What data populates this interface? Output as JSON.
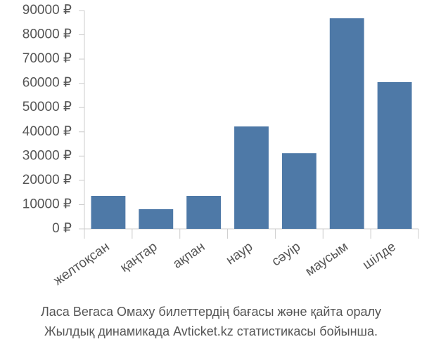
{
  "chart_data": {
    "type": "bar",
    "categories": [
      "желтоқсан",
      "қаңтар",
      "ақпан",
      "наур",
      "сәуір",
      "маусым",
      "шілде"
    ],
    "values": [
      13600,
      8100,
      13600,
      42200,
      31200,
      86800,
      60500
    ],
    "color": "#4e79a7",
    "ylim": [
      0,
      90000
    ],
    "yticks": [
      {
        "value": 0,
        "label": "0 ₽"
      },
      {
        "value": 10000,
        "label": "10000 ₽"
      },
      {
        "value": 20000,
        "label": "20000 ₽"
      },
      {
        "value": 30000,
        "label": "30000 ₽"
      },
      {
        "value": 40000,
        "label": "40000 ₽"
      },
      {
        "value": 50000,
        "label": "50000 ₽"
      },
      {
        "value": 60000,
        "label": "60000 ₽"
      },
      {
        "value": 70000,
        "label": "70000 ₽"
      },
      {
        "value": 80000,
        "label": "80000 ₽"
      },
      {
        "value": 90000,
        "label": "90000 ₽"
      }
    ],
    "grid": false,
    "caption": [
      "Ласа Вегаса Омаху билеттердің бағасы және қайта оралу",
      "Жылдық динамикада Avticket.kz статистикасы бойынша."
    ]
  }
}
